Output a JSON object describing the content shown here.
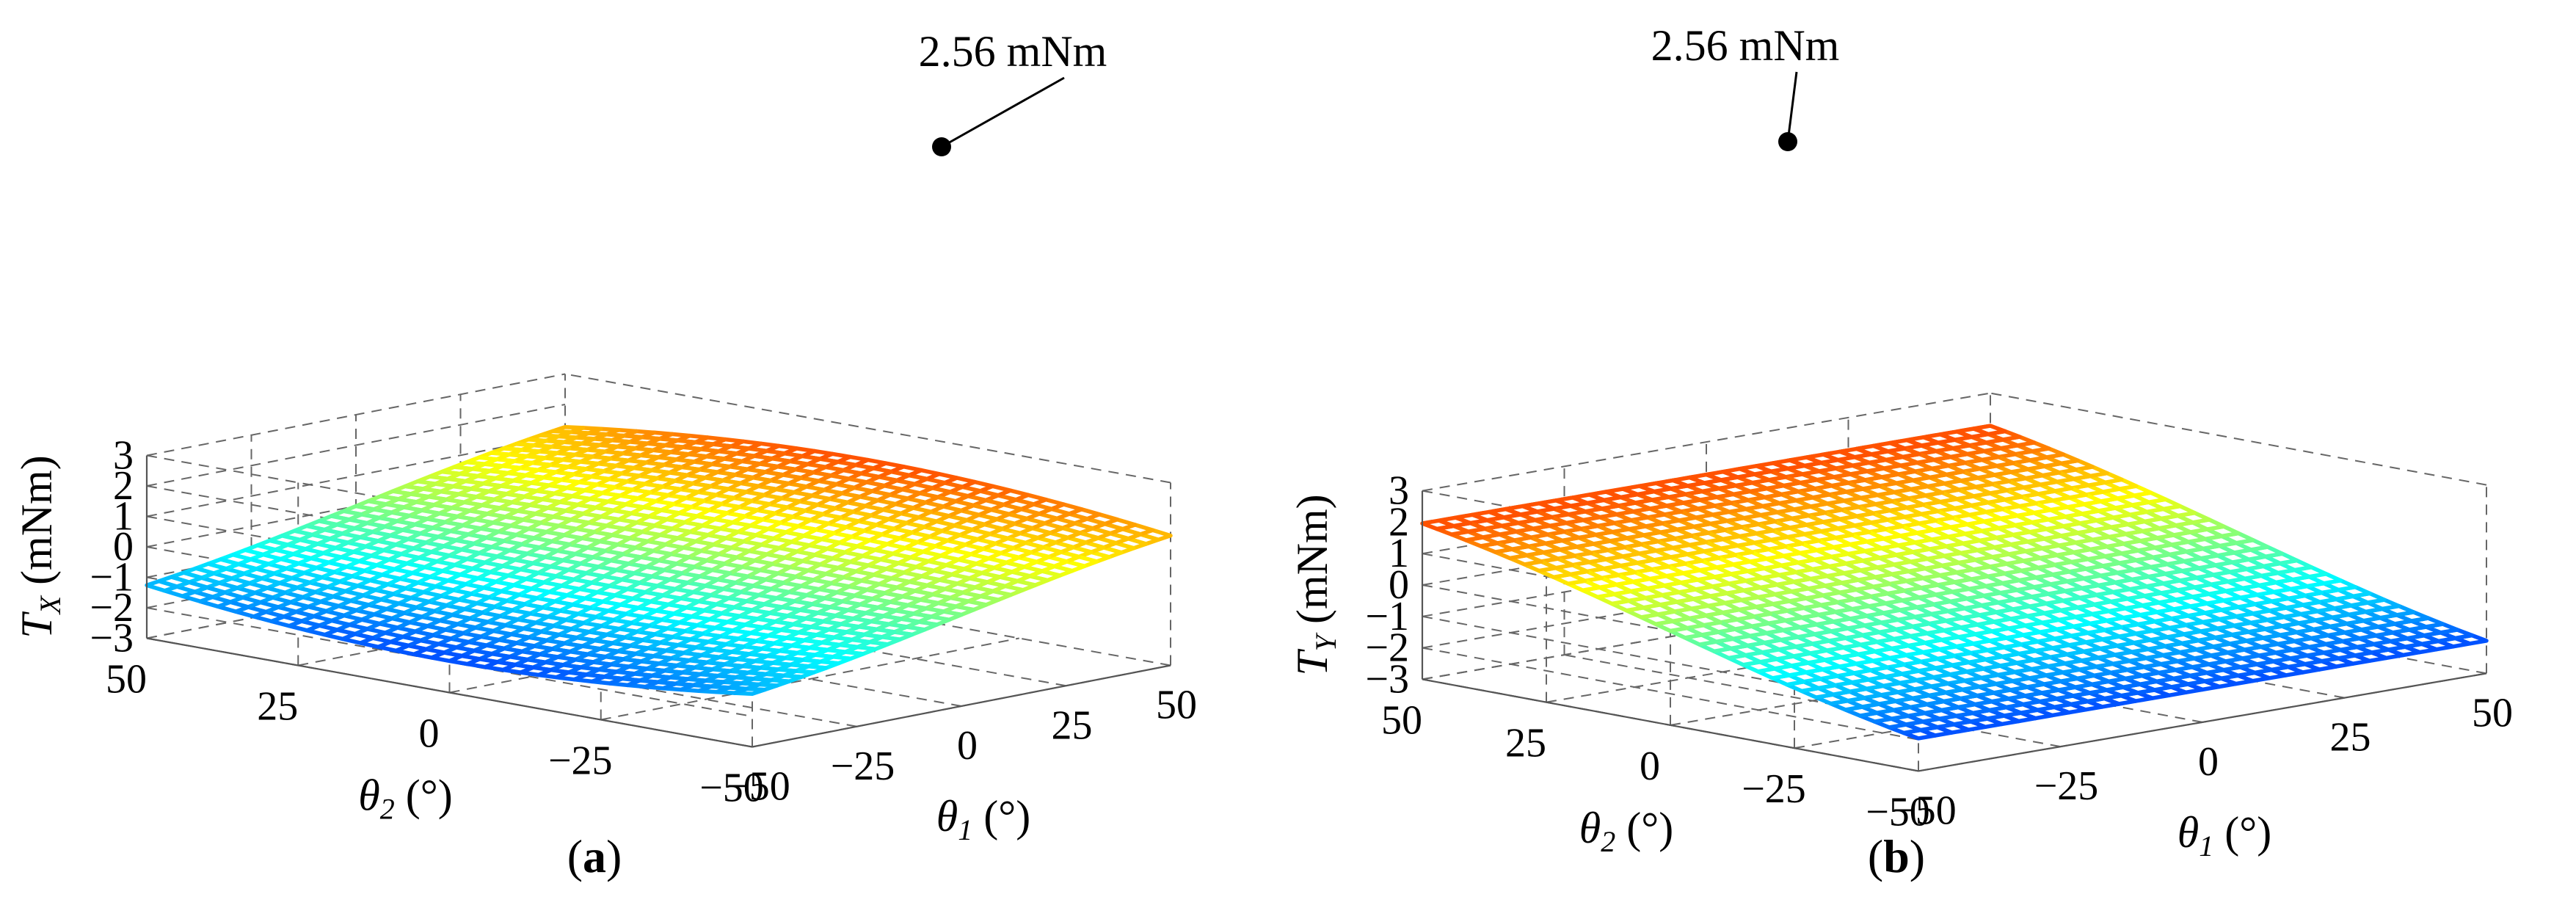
{
  "chart_data": [
    {
      "type": "surface",
      "panel_label": "(a)",
      "panel_letter": "a",
      "zlabel_main": "T",
      "zlabel_sub": "X",
      "zlabel_unit": " (mNm)",
      "x_name": "θ",
      "x_sub": "1",
      "x_unit": " (°)",
      "y_name": "θ",
      "y_sub": "2",
      "y_unit": " (°)",
      "xlim": [
        -50,
        50
      ],
      "ylim": [
        -50,
        50
      ],
      "zlim": [
        -3,
        3
      ],
      "xticks": [
        -50,
        -25,
        0,
        25,
        50
      ],
      "yticks": [
        -50,
        -25,
        0,
        25,
        50
      ],
      "zticks": [
        -3,
        -2,
        -1,
        0,
        1,
        2,
        3
      ],
      "xtick_labels": [
        "−50",
        "−25",
        "0",
        "25",
        "50"
      ],
      "ytick_labels": [
        "−50",
        "−25",
        "0",
        "25",
        "50"
      ],
      "ztick_labels": [
        "−3",
        "−2",
        "−1",
        "0",
        "1",
        "2",
        "3"
      ],
      "function": "2.56 * sin(theta1) * cos(theta2)",
      "peak": {
        "theta1": 50,
        "theta2": 0,
        "value": 2.56
      },
      "annotation": "2.56 mNm",
      "colormap": "jet"
    },
    {
      "type": "surface",
      "panel_label": "(b)",
      "panel_letter": "b",
      "zlabel_main": "T",
      "zlabel_sub": "Y",
      "zlabel_unit": " (mNm)",
      "x_name": "θ",
      "x_sub": "1",
      "x_unit": " (°)",
      "y_name": "θ",
      "y_sub": "2",
      "y_unit": " (°)",
      "xlim": [
        -50,
        50
      ],
      "ylim": [
        -50,
        50
      ],
      "zlim": [
        -3,
        3
      ],
      "xticks": [
        -50,
        -25,
        0,
        25,
        50
      ],
      "yticks": [
        -50,
        -25,
        0,
        25,
        50
      ],
      "zticks": [
        -3,
        -2,
        -1,
        0,
        1,
        2,
        3
      ],
      "xtick_labels": [
        "−50",
        "−25",
        "0",
        "25",
        "50"
      ],
      "ytick_labels": [
        "−50",
        "−25",
        "0",
        "25",
        "50"
      ],
      "ztick_labels": [
        "−3",
        "−2",
        "−1",
        "0",
        "1",
        "2",
        "3"
      ],
      "function": "2.56 * sin(theta2)",
      "peak": {
        "theta1": 0,
        "theta2": 50,
        "value": 2.56
      },
      "annotation": "2.56 mNm",
      "colormap": "jet"
    }
  ]
}
